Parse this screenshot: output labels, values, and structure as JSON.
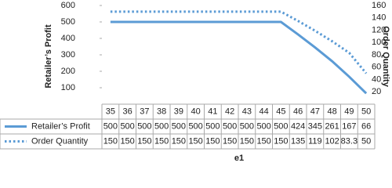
{
  "chart_data": {
    "type": "line",
    "x_label": "e1",
    "y_label": "Retailer’s Profit",
    "y2_label": "Order Quantity",
    "categories": [
      "35",
      "36",
      "37",
      "38",
      "39",
      "40",
      "41",
      "42",
      "43",
      "44",
      "45",
      "46",
      "47",
      "48",
      "49",
      "50"
    ],
    "series": [
      {
        "name": "Retailer’s Profit",
        "color": "#5b9bd5",
        "style": "solid",
        "values": [
          500,
          500,
          500,
          500,
          500,
          500,
          500,
          500,
          500,
          500,
          500,
          424,
          345,
          261,
          167,
          66
        ]
      },
      {
        "name": "Order Quantity",
        "color": "#5b9bd5",
        "style": "dotted",
        "axis": "y2",
        "values": [
          150,
          150,
          150,
          150,
          150,
          150,
          150,
          150,
          150,
          150,
          150,
          135,
          119,
          102,
          83.3,
          50
        ]
      }
    ],
    "ylim": [
      0,
      600
    ],
    "yticks": [
      100,
      200,
      300,
      400,
      500,
      600
    ],
    "y2lim": [
      0,
      160
    ],
    "y2ticks": [
      20,
      40,
      60,
      80,
      100,
      120,
      140,
      160
    ],
    "data_table": true
  }
}
